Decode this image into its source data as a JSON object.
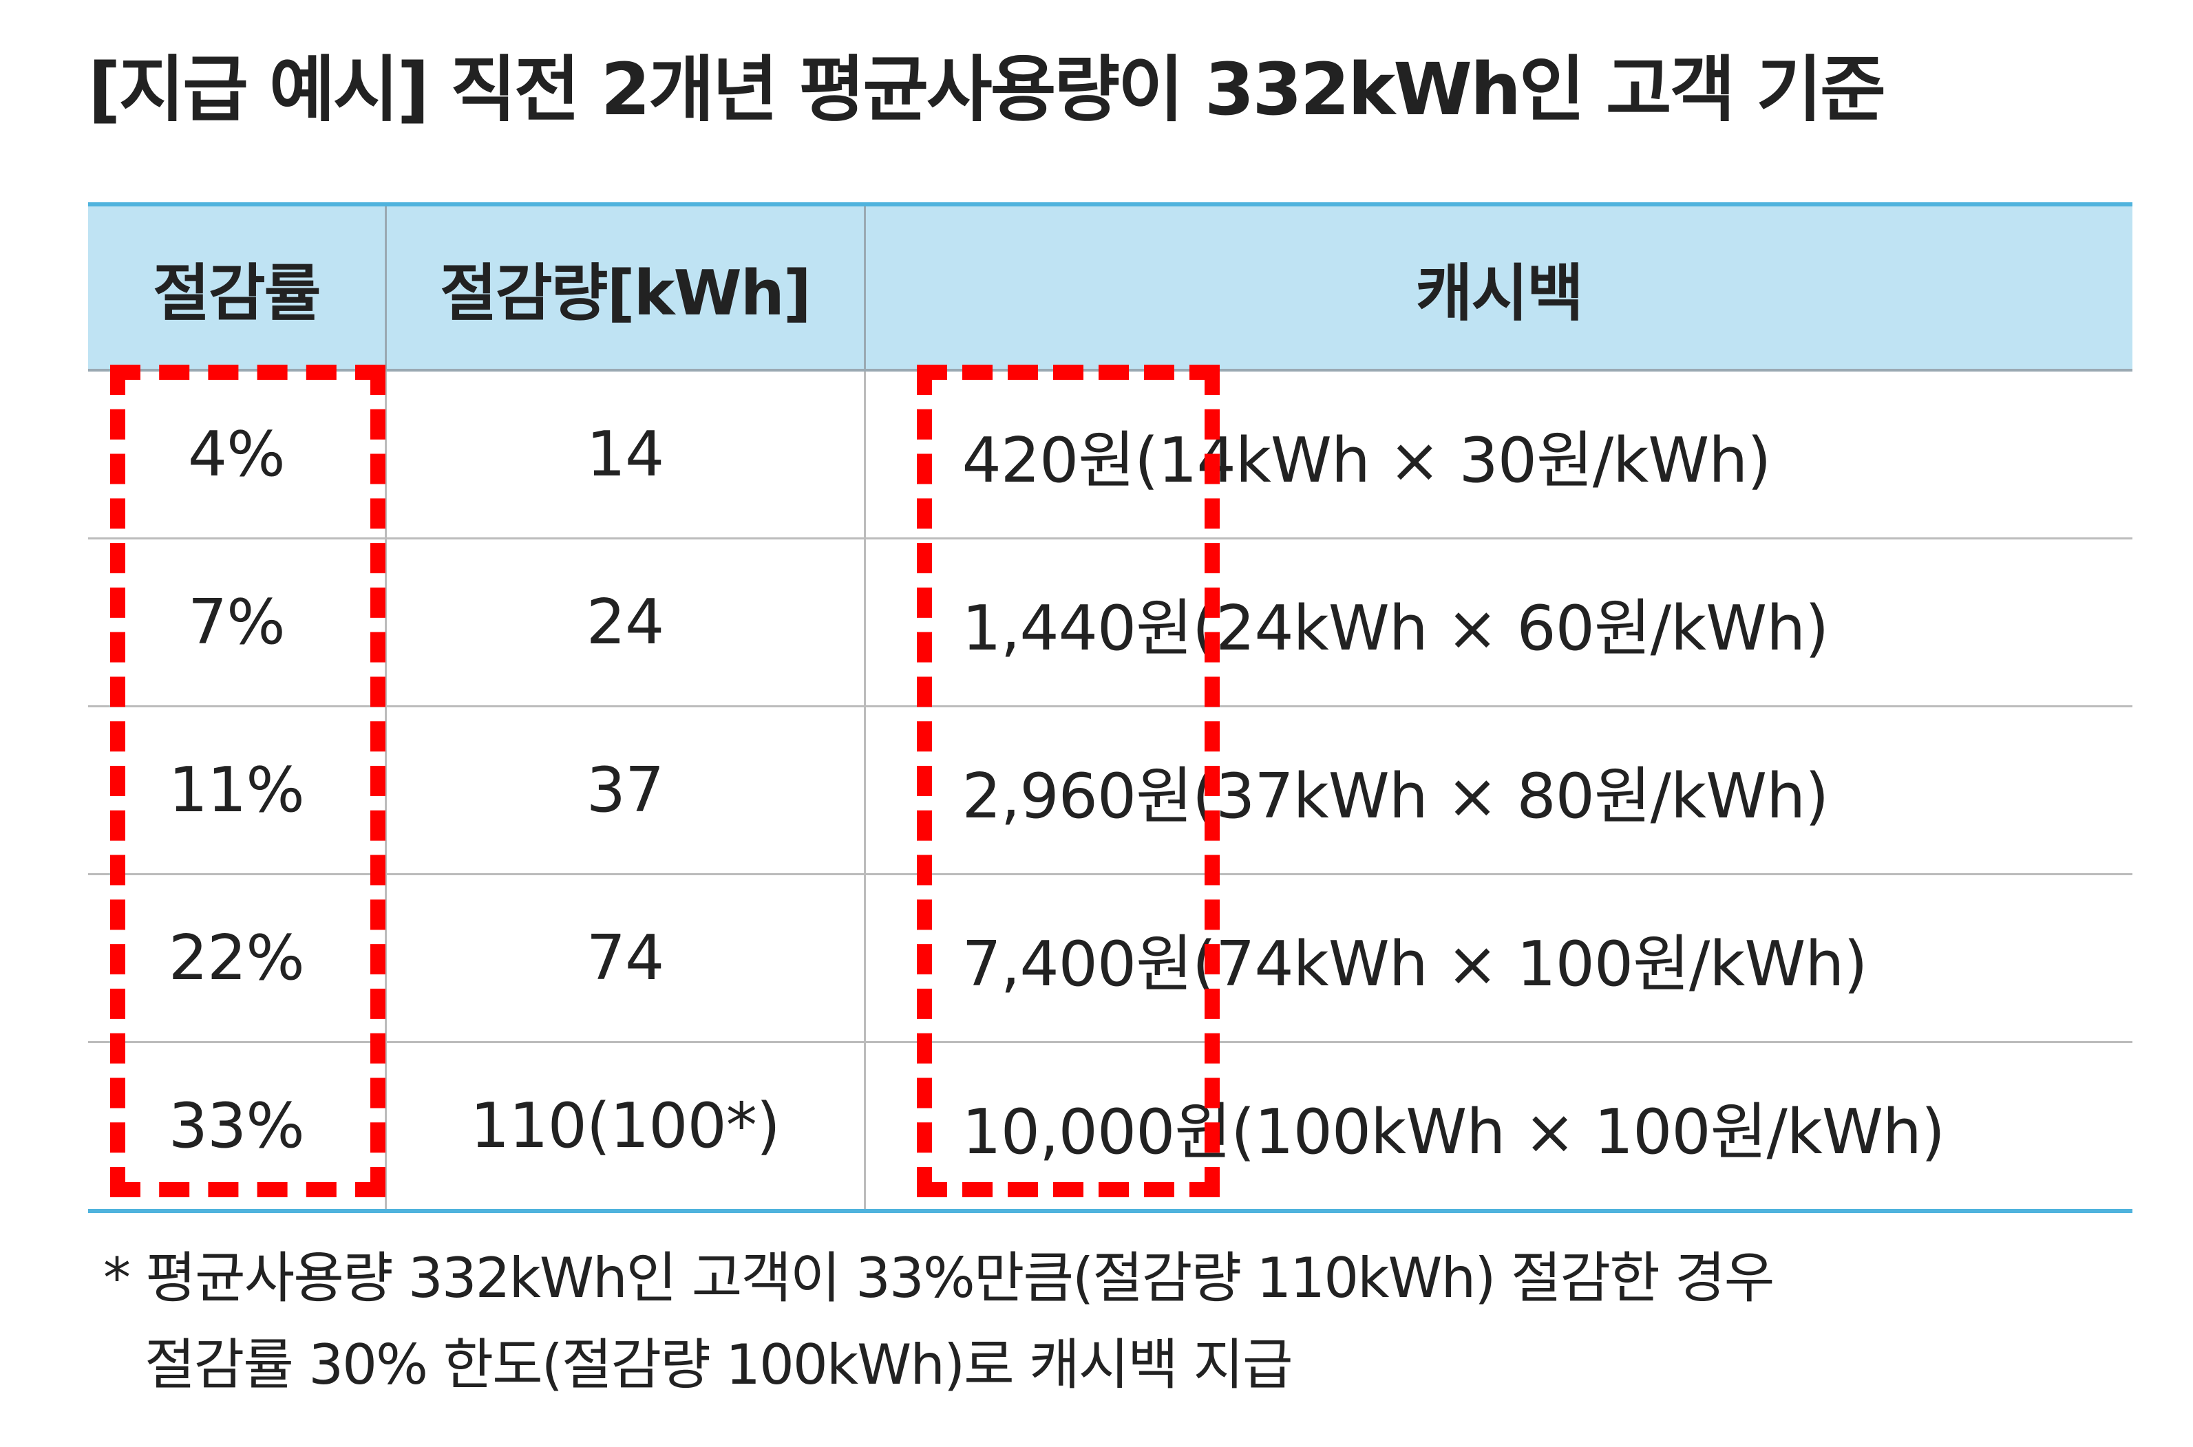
{
  "title": "[지급 예시] 직전 2개년 평균사용량이 332kWh인 고객 기준",
  "table": {
    "headers": [
      "절감률",
      "절감량[kWh]",
      "캐시백"
    ],
    "rows": [
      {
        "rate": "4%",
        "amount": "14",
        "cashback": "420원(14kWh × 30원/kWh)"
      },
      {
        "rate": "7%",
        "amount": "24",
        "cashback": "1,440원(24kWh × 60원/kWh)"
      },
      {
        "rate": "11%",
        "amount": "37",
        "cashback": "2,960원(37kWh × 80원/kWh)"
      },
      {
        "rate": "22%",
        "amount": "74",
        "cashback": "7,400원(74kWh × 100원/kWh)"
      },
      {
        "rate": "33%",
        "amount": "110(100*)",
        "cashback": "10,000원(100kWh × 100원/kWh)"
      }
    ]
  },
  "highlight_color": "#ff0000",
  "header_color": "#bfe3f3",
  "accent_line_color": "#4fb3dd",
  "footnote": {
    "line1": "* 평균사용량 332kWh인 고객이 33%만큼(절감량 110kWh) 절감한 경우",
    "line2": "절감률 30% 한도(절감량 100kWh)로 캐시백 지급"
  }
}
